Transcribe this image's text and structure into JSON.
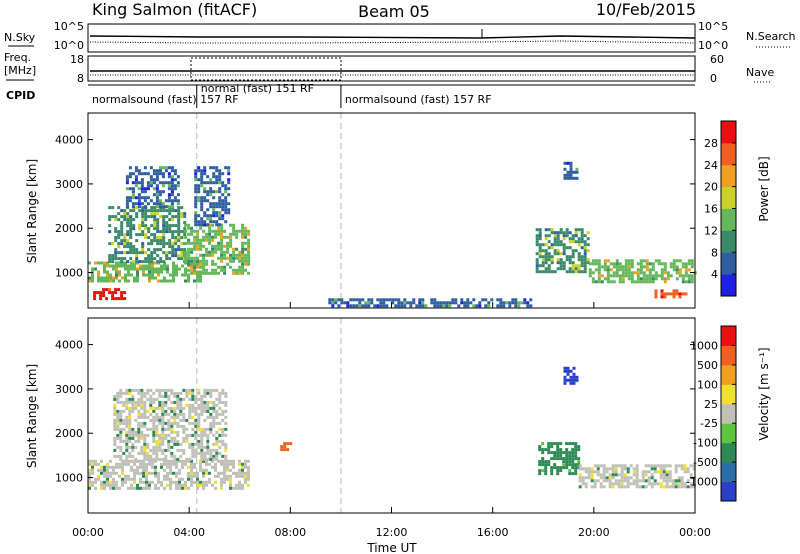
{
  "header": {
    "station": "King Salmon (fitACF)",
    "beam": "Beam 05",
    "date": "10/Feb/2015"
  },
  "side_labels": {
    "n_sky": "N.Sky",
    "freq_line1": "Freq.",
    "freq_line2": "[MHz]",
    "cpid": "CPID",
    "n_search": "N.Search",
    "nave": "Nave"
  },
  "chart_data": [
    {
      "type": "line",
      "panel": "noise",
      "left_ticks": [
        "10^5",
        "10^0"
      ],
      "right_ticks": [
        "10^5",
        "10^0"
      ],
      "series": [
        {
          "name": "N.Sky",
          "style": "solid"
        },
        {
          "name": "N.Search",
          "style": "dotted"
        }
      ]
    },
    {
      "type": "line",
      "panel": "frequency_nave",
      "left_ticks": [
        "18",
        "8"
      ],
      "right_ticks": [
        "60",
        "0"
      ],
      "series": [
        {
          "name": "Freq.",
          "unit": "MHz",
          "style": "solid",
          "approx_value": 10.5
        },
        {
          "name": "Nave",
          "style": "dotted"
        }
      ]
    },
    {
      "type": "table",
      "panel": "cpid",
      "segments": [
        {
          "label": "normalsound (fast)",
          "cpid": "157",
          "mode": "RF",
          "start_hour": 0.0,
          "end_hour": 10.0,
          "row": 0
        },
        {
          "label": "normal (fast)",
          "cpid": "151",
          "mode": "RF",
          "start_hour": 4.3,
          "end_hour": 10.0,
          "row": 1
        },
        {
          "label": "normalsound (fast)",
          "cpid": "157",
          "mode": "RF",
          "start_hour": 10.0,
          "end_hour": 24.0,
          "row": 0
        }
      ]
    },
    {
      "type": "heatmap",
      "panel": "power",
      "ylabel": "Slant Range [km]",
      "xlim": [
        0,
        24
      ],
      "ylim": [
        200,
        4600
      ],
      "yticks": [
        1000,
        2000,
        3000,
        4000
      ],
      "colorbar": {
        "label": "Power [dB]",
        "ticks": [
          "4",
          "8",
          "12",
          "16",
          "20",
          "24",
          "28"
        ],
        "colors": [
          "#1f1fe6",
          "#2f5fa0",
          "#3a8a6a",
          "#62b85a",
          "#c8d22a",
          "#f0a020",
          "#f06020",
          "#e81010"
        ]
      },
      "regions": [
        {
          "t0": 0.0,
          "t1": 4.5,
          "r0": 780,
          "r1": 1250,
          "value": 12
        },
        {
          "t0": 0.8,
          "t1": 3.8,
          "r0": 1250,
          "r1": 2500,
          "value": 8
        },
        {
          "t0": 1.5,
          "t1": 3.6,
          "r0": 2500,
          "r1": 3400,
          "value": 4
        },
        {
          "t0": 3.8,
          "t1": 6.3,
          "r0": 1000,
          "r1": 2100,
          "value": 12
        },
        {
          "t0": 4.2,
          "t1": 5.6,
          "r0": 2100,
          "r1": 3400,
          "value": 4
        },
        {
          "t0": 0.2,
          "t1": 1.5,
          "r0": 400,
          "r1": 650,
          "value": 28
        },
        {
          "t0": 17.7,
          "t1": 19.8,
          "r0": 1000,
          "r1": 2000,
          "value": 8
        },
        {
          "t0": 19.8,
          "t1": 24.0,
          "r0": 760,
          "r1": 1300,
          "value": 12
        },
        {
          "t0": 18.8,
          "t1": 19.3,
          "r0": 3100,
          "r1": 3500,
          "value": 4
        },
        {
          "t0": 22.4,
          "t1": 23.6,
          "r0": 420,
          "r1": 620,
          "value": 24
        },
        {
          "t0": 9.5,
          "t1": 17.5,
          "r0": 250,
          "r1": 420,
          "value": 4
        }
      ]
    },
    {
      "type": "heatmap",
      "panel": "velocity",
      "ylabel": "Slant Range [km]",
      "xlabel": "Time UT",
      "xlim": [
        0,
        24
      ],
      "ylim": [
        200,
        4600
      ],
      "yticks": [
        1000,
        2000,
        3000,
        4000
      ],
      "xticks": [
        "00:00",
        "04:00",
        "08:00",
        "12:00",
        "16:00",
        "20:00",
        "00:00"
      ],
      "colorbar": {
        "label": "Velocity [m s⁻¹]",
        "ticks": [
          "1000",
          "500",
          "100",
          "25",
          "-25",
          "-100",
          "-500",
          "-1000"
        ],
        "colors": [
          "#2a40c8",
          "#2a6fa8",
          "#2e8a55",
          "#5ec63e",
          "#c0c0b8",
          "#f0e030",
          "#f0a020",
          "#f06020",
          "#e81010"
        ]
      },
      "regions": [
        {
          "t0": 0.0,
          "t1": 6.3,
          "r0": 780,
          "r1": 1400,
          "value": 0
        },
        {
          "t0": 1.0,
          "t1": 5.5,
          "r0": 1400,
          "r1": 3000,
          "value": 0
        },
        {
          "t0": 7.6,
          "t1": 8.0,
          "r0": 1600,
          "r1": 1800,
          "value": -500
        },
        {
          "t0": 17.8,
          "t1": 19.4,
          "r0": 1100,
          "r1": 1800,
          "value": 100
        },
        {
          "t0": 19.4,
          "t1": 24.0,
          "r0": 800,
          "r1": 1300,
          "value": 0
        },
        {
          "t0": 18.8,
          "t1": 19.3,
          "r0": 3100,
          "r1": 3500,
          "value": 1000
        }
      ]
    }
  ]
}
